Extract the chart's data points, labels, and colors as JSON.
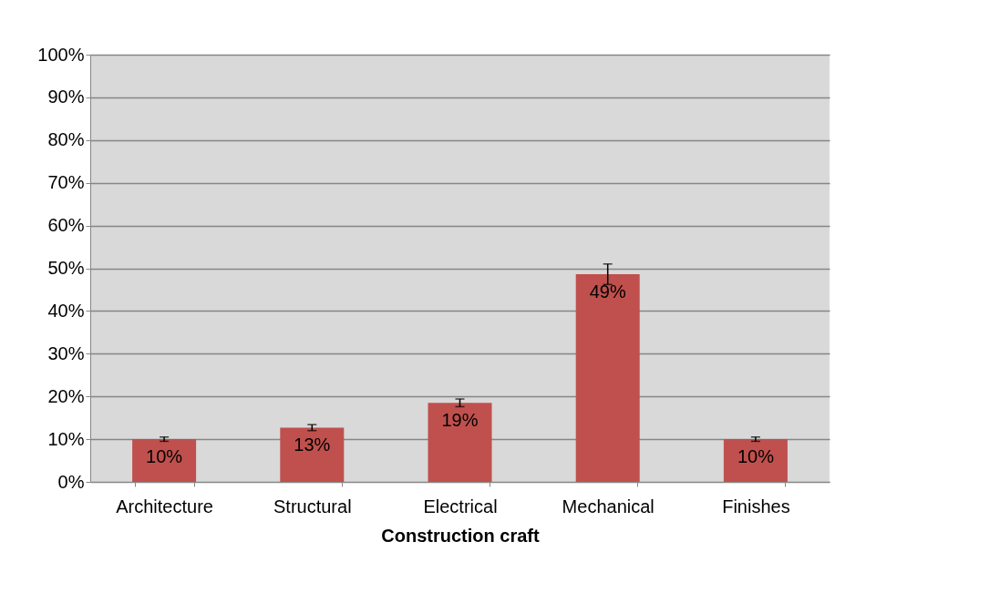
{
  "chart_data": {
    "type": "bar",
    "xlabel": "Construction craft",
    "categories": [
      "Architecture",
      "Structural",
      "Electrical",
      "Mechanical",
      "Finishes"
    ],
    "values": [
      10.0,
      12.7,
      18.5,
      48.6,
      10.0
    ],
    "errors": [
      0.5,
      0.7,
      0.9,
      2.4,
      0.5
    ],
    "value_labels": [
      "10%",
      "13%",
      "19%",
      "49%",
      "10%"
    ],
    "color": "#c0504d",
    "ylim": [
      0,
      100
    ],
    "yticks": [
      {
        "value": 0,
        "label": "0%"
      },
      {
        "value": 10,
        "label": "10%"
      },
      {
        "value": 20,
        "label": "20%"
      },
      {
        "value": 30,
        "label": "30%"
      },
      {
        "value": 40,
        "label": "40%"
      },
      {
        "value": 50,
        "label": "50%"
      },
      {
        "value": 60,
        "label": "60%"
      },
      {
        "value": 70,
        "label": "70%"
      },
      {
        "value": 80,
        "label": "80%"
      },
      {
        "value": 90,
        "label": "90%"
      },
      {
        "value": 100,
        "label": "100%"
      }
    ],
    "grid": "y"
  }
}
